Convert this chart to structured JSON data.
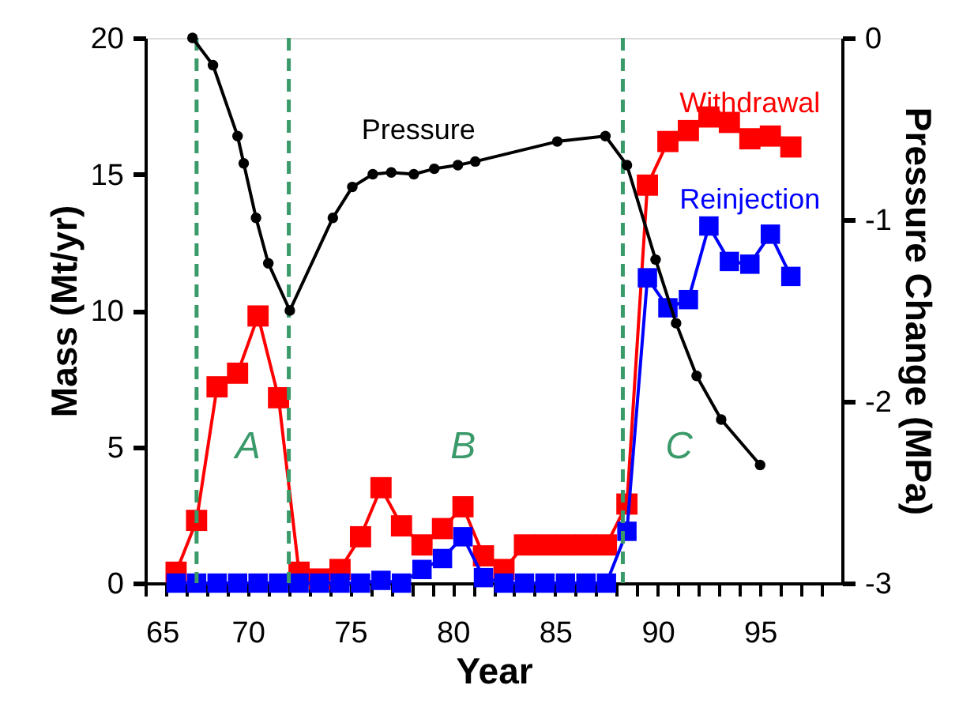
{
  "chart_data": {
    "type": "line",
    "xlabel": "Year",
    "ylabel": "Mass (Mt/yr)",
    "y2label": "Pressure Change (MPa)",
    "xlim": [
      65,
      99
    ],
    "xticks": [
      65,
      {
        "value": 66,
        "label": null
      },
      {
        "value": 67,
        "label": null
      },
      {
        "value": 68,
        "label": null
      },
      {
        "value": 69,
        "label": null
      },
      70,
      {
        "value": 71,
        "label": null
      },
      {
        "value": 72,
        "label": null
      },
      {
        "value": 73,
        "label": null
      },
      {
        "value": 74,
        "label": null
      },
      75,
      {
        "value": 76,
        "label": null
      },
      {
        "value": 77,
        "label": null
      },
      {
        "value": 78,
        "label": null
      },
      {
        "value": 79,
        "label": null
      },
      80,
      {
        "value": 81,
        "label": null
      },
      {
        "value": 82,
        "label": null
      },
      {
        "value": 83,
        "label": null
      },
      {
        "value": 84,
        "label": null
      },
      85,
      {
        "value": 86,
        "label": null
      },
      {
        "value": 87,
        "label": null
      },
      {
        "value": 88,
        "label": null
      },
      {
        "value": 89,
        "label": null
      },
      90,
      {
        "value": 91,
        "label": null
      },
      {
        "value": 92,
        "label": null
      },
      {
        "value": 93,
        "label": null
      },
      {
        "value": 94,
        "label": null
      },
      95,
      {
        "value": 96,
        "label": null
      },
      {
        "value": 97,
        "label": null
      },
      {
        "value": 98,
        "label": null
      }
    ],
    "ylim": [
      0,
      20
    ],
    "yticks": [
      0,
      5,
      10,
      15,
      20
    ],
    "y2lim": [
      -3,
      0
    ],
    "y2ticks": [
      -3,
      -2,
      -1,
      0
    ],
    "grid": false,
    "series": [
      {
        "name": "Withdrawal",
        "color": "#ff0000",
        "marker": "square",
        "x": [
          66.5,
          67.5,
          68.5,
          69.5,
          70.5,
          71.5,
          72.5,
          73.5,
          74.5,
          75.5,
          76.5,
          77.5,
          78.5,
          79.5,
          80.5,
          81.5,
          82.5,
          83.5,
          84.5,
          85.5,
          86.5,
          87.5,
          88.5,
          89.5,
          90.5,
          91.5,
          92.5,
          93.5,
          94.5,
          95.5,
          96.5
        ],
        "values": [
          0.4,
          2.3,
          7.2,
          7.7,
          9.8,
          6.8,
          0.4,
          0.15,
          0.5,
          1.7,
          3.5,
          2.1,
          1.4,
          2.0,
          2.8,
          1.0,
          0.5,
          1.4,
          1.4,
          1.4,
          1.4,
          1.4,
          2.9,
          14.6,
          16.2,
          16.6,
          17.1,
          16.9,
          16.3,
          16.4,
          16.0
        ]
      },
      {
        "name": "Reinjection",
        "color": "#0000ff",
        "marker": "square",
        "x": [
          66.5,
          67.5,
          68.5,
          69.5,
          70.5,
          71.5,
          72.5,
          73.5,
          74.5,
          75.5,
          76.5,
          77.5,
          78.5,
          79.5,
          80.5,
          81.5,
          82.5,
          83.5,
          84.5,
          85.5,
          86.5,
          87.5,
          88.5,
          89.5,
          90.5,
          91.5,
          92.5,
          93.5,
          94.5,
          95.5,
          96.5
        ],
        "values": [
          0,
          0,
          0,
          0,
          0,
          0,
          0,
          0,
          0,
          0,
          0.1,
          0,
          0.5,
          0.9,
          1.7,
          0.2,
          0,
          0,
          0,
          0,
          0,
          0,
          1.9,
          11.2,
          10.1,
          10.4,
          13.1,
          11.8,
          11.7,
          12.8,
          11.25
        ]
      },
      {
        "name": "Pressure",
        "color": "#000000",
        "marker": "circle",
        "axis": "y2",
        "x": [
          67.3,
          68.3,
          69.5,
          69.8,
          70.4,
          71.0,
          72.05,
          74.15,
          75.1,
          76.1,
          77.0,
          78.1,
          79.1,
          80.25,
          81.1,
          85.1,
          87.45,
          88.5,
          89.9,
          90.9,
          91.9,
          93.1,
          95.0
        ],
        "values": [
          0,
          -0.15,
          -0.54,
          -0.69,
          -0.99,
          -1.24,
          -1.5,
          -0.99,
          -0.82,
          -0.75,
          -0.74,
          -0.75,
          -0.72,
          -0.7,
          -0.68,
          -0.57,
          -0.54,
          -0.7,
          -1.22,
          -1.57,
          -1.86,
          -2.1,
          -2.35
        ]
      }
    ],
    "ref_lines": [
      {
        "axis": "x",
        "value": 67.5,
        "color": "#3a9a6a",
        "line_style": "dashed"
      },
      {
        "axis": "x",
        "value": 72,
        "color": "#3a9a6a",
        "line_style": "dashed"
      },
      {
        "axis": "x",
        "value": 88.3,
        "color": "#3a9a6a",
        "line_style": "dashed"
      }
    ],
    "annotations": [
      "A",
      "B",
      "C"
    ]
  }
}
